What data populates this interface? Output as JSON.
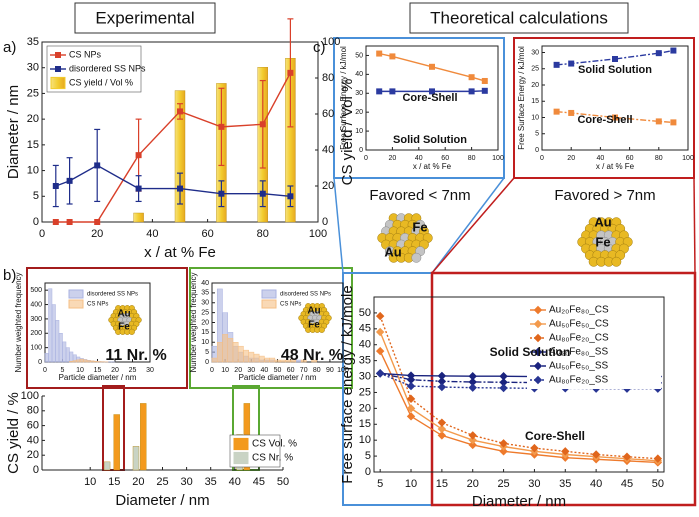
{
  "headers": [
    "Experimental",
    "Theoretical calculations"
  ],
  "panel_labels": [
    "a)",
    "b)",
    "c)"
  ],
  "favored": [
    "Favored < 7nm",
    "Favored > 7nm"
  ],
  "clusters": [
    {
      "au": "Au",
      "fe": "Fe"
    },
    {
      "au": "Au",
      "fe": "Fe"
    },
    {
      "au": "Au",
      "fe": "Fe"
    },
    {
      "au": "Au",
      "fe": "Fe"
    }
  ],
  "chart_data": [
    {
      "type": "line",
      "xlabel": "x / at % Fe",
      "ylabel": "Diameter / nm",
      "y2label": "CS yield / Vol %",
      "xlim": [
        0,
        100
      ],
      "xticks": [
        0,
        20,
        40,
        60,
        80,
        100
      ],
      "ylim": [
        0,
        35
      ],
      "yticks": [
        0,
        5,
        10,
        15,
        20,
        25,
        30,
        35
      ],
      "y2lim": [
        0,
        100
      ],
      "y2ticks": [
        0,
        20,
        40,
        60,
        80,
        100
      ],
      "legend": "upper left",
      "series": [
        {
          "name": "CS NPs",
          "type": "line",
          "color": "#d9402a",
          "marker": "square",
          "x": [
            5,
            10,
            20,
            35,
            50,
            65,
            80,
            90
          ],
          "values": [
            0,
            0,
            0,
            13,
            21.5,
            18.5,
            19,
            29
          ],
          "errors": [
            0,
            0,
            0,
            7,
            1.5,
            7.5,
            8.5,
            10.5
          ]
        },
        {
          "name": "disordered SS NPs",
          "type": "line",
          "color": "#1f2d8a",
          "marker": "square",
          "x": [
            5,
            10,
            20,
            35,
            50,
            65,
            80,
            90
          ],
          "values": [
            7,
            8,
            11,
            6.5,
            6.5,
            5.5,
            5.5,
            5
          ],
          "errors": [
            4,
            4.5,
            7,
            2.5,
            3,
            2.5,
            2.5,
            2
          ]
        },
        {
          "name": "CS yield / Vol %",
          "type": "bar",
          "axis": "y2",
          "color": "#f2cc2e",
          "x": [
            35,
            50,
            65,
            80,
            90
          ],
          "values": [
            5,
            73,
            77,
            86,
            91
          ]
        }
      ]
    },
    {
      "type": "histogram",
      "xlabel": "Particle diameter / nm",
      "ylabel": "Number weighted frequency",
      "xlim": [
        0,
        30
      ],
      "xticks": [
        0,
        5,
        10,
        15,
        20,
        25,
        30
      ],
      "ylim": [
        0,
        550
      ],
      "yticks": [
        0,
        100,
        200,
        300,
        400,
        500
      ],
      "legend": "upper right",
      "annotations": [
        "11 Nr. %"
      ],
      "bins": [
        0,
        1,
        2,
        3,
        4,
        5,
        6,
        7,
        8,
        9,
        10,
        11,
        12,
        13,
        14,
        15,
        16,
        17,
        18,
        19,
        20
      ],
      "series": [
        {
          "name": "disordered SS NPs",
          "color": "#aab2e0",
          "values": [
            60,
            510,
            400,
            290,
            200,
            140,
            100,
            70,
            50,
            35,
            25,
            18,
            12,
            8,
            6,
            4,
            3,
            2,
            1,
            1
          ]
        },
        {
          "name": "CS NPs",
          "color": "#f5bf85",
          "values": [
            0,
            0,
            0,
            0,
            0,
            0,
            0,
            5,
            10,
            15,
            20,
            15,
            10,
            8,
            5,
            3,
            2,
            1,
            0,
            0
          ]
        }
      ]
    },
    {
      "type": "histogram",
      "xlabel": "Particle diameter / nm",
      "ylabel": "Number weighted frequency",
      "xlim": [
        0,
        100
      ],
      "xticks": [
        0,
        10,
        20,
        30,
        40,
        50,
        60,
        70,
        80,
        90,
        100
      ],
      "ylim": [
        0,
        40
      ],
      "yticks": [
        0,
        5,
        10,
        15,
        20,
        25,
        30,
        35,
        40
      ],
      "legend": "upper right",
      "annotations": [
        "48 Nr. %"
      ],
      "bins": [
        0,
        4,
        8,
        12,
        16,
        20,
        24,
        28,
        32,
        36,
        40,
        44,
        48,
        52,
        56,
        60,
        64,
        68,
        72,
        76,
        80,
        84,
        88,
        92,
        96,
        100
      ],
      "series": [
        {
          "name": "disordered SS NPs",
          "color": "#aab2e0",
          "values": [
            8,
            37,
            25,
            15,
            8,
            5,
            3,
            2,
            2,
            1,
            1,
            1,
            0,
            0,
            0,
            0,
            1,
            0,
            0,
            0,
            0,
            0,
            0,
            0,
            0
          ]
        },
        {
          "name": "CS NPs",
          "color": "#f5bf85",
          "values": [
            2,
            10,
            14,
            12,
            10,
            8,
            6,
            5,
            4,
            3,
            2,
            2,
            1,
            1,
            1,
            1,
            0,
            1,
            0,
            1,
            0,
            0,
            0,
            0,
            0
          ]
        }
      ]
    },
    {
      "type": "bar",
      "xlabel": "Diameter / nm",
      "ylabel": "CS yield / %",
      "xlim": [
        0,
        50
      ],
      "xticks": [
        10,
        15,
        20,
        25,
        30,
        35,
        40,
        45,
        50
      ],
      "ylim": [
        0,
        100
      ],
      "yticks": [
        0,
        20,
        40,
        60,
        80,
        100
      ],
      "legend": "lower right",
      "series": [
        {
          "name": "CS Vol. %",
          "color": "#f39a1e",
          "x": [
            15.5,
            21,
            42.5
          ],
          "values": [
            75,
            90,
            90
          ]
        },
        {
          "name": "CS Nr. %",
          "color": "#c9d3c4",
          "x": [
            13.5,
            19.5,
            41
          ],
          "values": [
            11,
            32,
            48
          ]
        }
      ]
    },
    {
      "type": "line",
      "xlabel": "x / at % Fe",
      "ylabel": "Free Surface Energy / kJ/mol",
      "xlim": [
        0,
        100
      ],
      "xticks": [
        0,
        20,
        40,
        60,
        80,
        100
      ],
      "ylim": [
        0,
        55
      ],
      "yticks": [
        0,
        10,
        20,
        30,
        40,
        50
      ],
      "legend": "none",
      "series": [
        {
          "name": "Core-Shell",
          "color": "#f08a3c",
          "marker": "square",
          "dash": "solid",
          "x": [
            10,
            20,
            50,
            80,
            90
          ],
          "values": [
            51,
            49.5,
            44,
            38.5,
            36.5
          ]
        },
        {
          "name": "Solid Solution",
          "color": "#2b3aa0",
          "marker": "square",
          "dash": "solid",
          "x": [
            10,
            20,
            50,
            80,
            90
          ],
          "values": [
            31,
            31,
            31,
            31,
            31.3
          ]
        }
      ]
    },
    {
      "type": "line",
      "xlabel": "x / at % Fe",
      "ylabel": "Free Surface Energy / kJ/mol",
      "xlim": [
        0,
        100
      ],
      "xticks": [
        0,
        20,
        40,
        60,
        80,
        100
      ],
      "ylim": [
        0,
        32
      ],
      "yticks": [
        0,
        5,
        10,
        15,
        20,
        25,
        30
      ],
      "legend": "none",
      "series": [
        {
          "name": "Solid Solution",
          "color": "#2b3aa0",
          "marker": "square",
          "dash": "dashdot",
          "x": [
            10,
            20,
            50,
            80,
            90
          ],
          "values": [
            26.2,
            26.6,
            28,
            29.8,
            30.6
          ]
        },
        {
          "name": "Core-Shell",
          "color": "#f08a3c",
          "marker": "square",
          "dash": "dashdot",
          "x": [
            10,
            20,
            50,
            80,
            90
          ],
          "values": [
            11.8,
            11.4,
            10,
            8.8,
            8.5
          ]
        }
      ]
    },
    {
      "type": "line",
      "xlabel": "Diameter / nm",
      "ylabel": "Free surface energy / kJ/mole",
      "xlim": [
        4,
        51
      ],
      "xticks": [
        5,
        10,
        15,
        20,
        25,
        30,
        35,
        40,
        45,
        50
      ],
      "ylim": [
        0,
        55
      ],
      "yticks": [
        0,
        5,
        10,
        15,
        20,
        25,
        30,
        35,
        40,
        45,
        50
      ],
      "legend": "upper right",
      "annotations": [
        "Solid Solution",
        "Core-Shell"
      ],
      "x": [
        5,
        10,
        15,
        20,
        25,
        30,
        35,
        40,
        45,
        50
      ],
      "series": [
        {
          "name": "Au₂₀Fe₈₀_CS",
          "color": "#ee7a2c",
          "marker": "diamond",
          "dash": "solid",
          "values": [
            38,
            17.5,
            11.5,
            8.5,
            6.5,
            5.5,
            4.5,
            4,
            3.5,
            3
          ]
        },
        {
          "name": "Au₅₀Fe₅₀_CS",
          "color": "#f39a4c",
          "marker": "diamond",
          "dash": "solid",
          "values": [
            44,
            20,
            13.5,
            10,
            8,
            6.5,
            5.5,
            4.8,
            4.2,
            3.5
          ]
        },
        {
          "name": "Au₈₀Fe₂₀_CS",
          "color": "#e0661c",
          "marker": "diamond",
          "dash": "dotted",
          "values": [
            49,
            23,
            15.5,
            11.5,
            9,
            7.5,
            6.5,
            5.5,
            4.8,
            4.2
          ]
        },
        {
          "name": "Au₂₀Fe₈₀_SS",
          "color": "#1a237e",
          "marker": "diamond",
          "dash": "solid",
          "values": [
            31,
            30.3,
            30.2,
            30.1,
            30.1,
            30,
            30,
            30,
            30,
            30
          ]
        },
        {
          "name": "Au₅₀Fe₅₀_SS",
          "color": "#1a237e",
          "marker": "diamond",
          "dash": "dashdot",
          "values": [
            31,
            29,
            28.5,
            28.3,
            28.2,
            28.1,
            28.1,
            28,
            28,
            28
          ]
        },
        {
          "name": "Au₈₀Fe₂₀_SS",
          "color": "#283593",
          "marker": "diamond",
          "dash": "dotted",
          "values": [
            31,
            27,
            26.7,
            26.5,
            26.4,
            26.3,
            26.3,
            26.2,
            26.2,
            26.2
          ]
        }
      ]
    }
  ]
}
